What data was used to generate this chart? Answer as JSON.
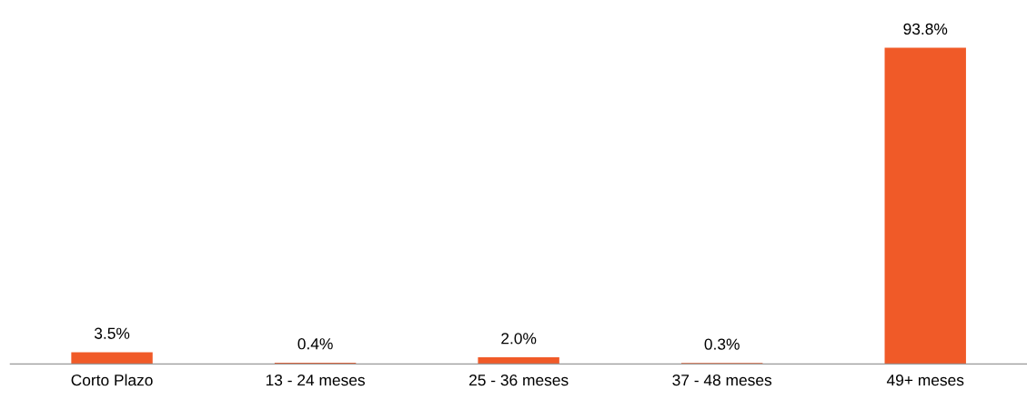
{
  "chart_data": {
    "type": "bar",
    "categories": [
      "Corto Plazo",
      "13 - 24 meses",
      "25 - 36 meses",
      "37 - 48 meses",
      "49+ meses"
    ],
    "values": [
      3.5,
      0.4,
      2.0,
      0.3,
      93.8
    ],
    "value_labels": [
      "3.5%",
      "0.4%",
      "2.0%",
      "0.3%",
      "93.8%"
    ],
    "color": "#f05a28",
    "grid": false,
    "legend": false
  }
}
